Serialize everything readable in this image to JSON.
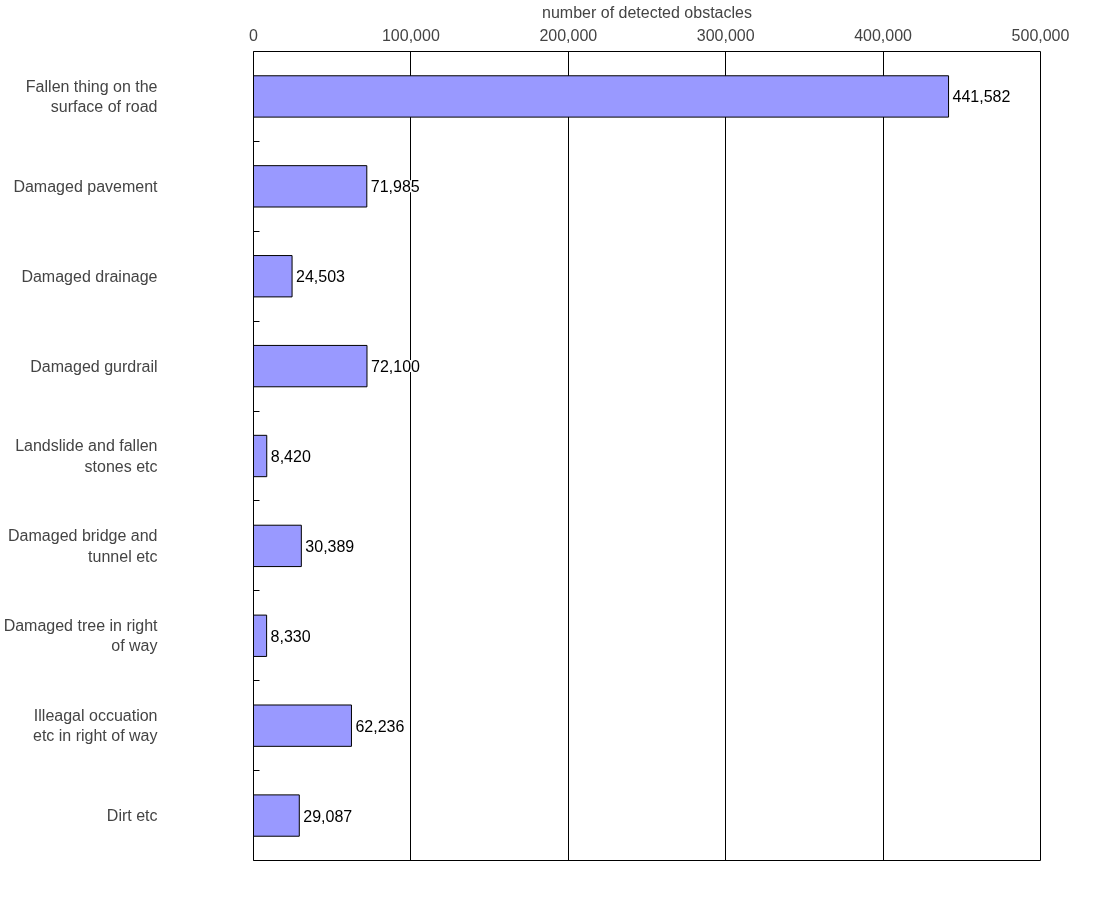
{
  "chart_data": {
    "type": "bar",
    "orientation": "horizontal",
    "xlabel": "number of detected obstacles",
    "categories": [
      "Fallen thing on the surface of road",
      "Damaged pavement",
      "Damaged drainage",
      "Damaged gurdrail",
      "Landslide and fallen stones etc",
      "Damaged bridge and tunnel etc",
      "Damaged tree in right of way",
      "Illeagal occuation etc in right of way",
      "Dirt etc"
    ],
    "values": [
      441582,
      71985,
      24503,
      72100,
      8420,
      30389,
      8330,
      62236,
      29087
    ],
    "value_labels": [
      "441,582",
      "71,985",
      "24,503",
      "72,100",
      "8,420",
      "30,389",
      "8,330",
      "62,236",
      "29,087"
    ],
    "color": "#9999ff",
    "xlim": [
      0,
      500000
    ],
    "xticks": [
      0,
      {
        "value": 100000,
        "label": "100,000"
      },
      {
        "value": 200000,
        "label": "200,000"
      },
      {
        "value": 300000,
        "label": "300,000"
      },
      {
        "value": 400000,
        "label": "400,000"
      },
      {
        "value": 500000,
        "label": "500,000"
      }
    ],
    "grid": "x"
  }
}
